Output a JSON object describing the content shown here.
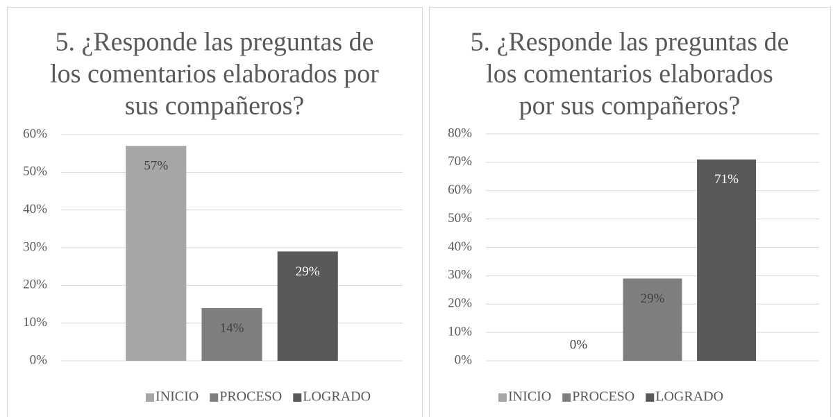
{
  "chart_data": [
    {
      "type": "bar",
      "title": [
        "5. ¿Responde las preguntas de",
        "los comentarios elaborados por",
        "sus compañeros?"
      ],
      "categories": [
        null
      ],
      "series": [
        {
          "name": "INICIO",
          "color": "#a6a6a6",
          "values": [
            57
          ],
          "value_labels": [
            "57%"
          ]
        },
        {
          "name": "PROCESO",
          "color": "#7f7f7f",
          "values": [
            14
          ],
          "value_labels": [
            "14%"
          ]
        },
        {
          "name": "LOGRADO",
          "color": "#595959",
          "values": [
            29
          ],
          "value_labels": [
            "29%"
          ]
        }
      ],
      "ylim": [
        0,
        60
      ],
      "yticks": [
        {
          "value": 0,
          "label": "0%"
        },
        {
          "value": 10,
          "label": "10%"
        },
        {
          "value": 20,
          "label": "20%"
        },
        {
          "value": 30,
          "label": "30%"
        },
        {
          "value": 40,
          "label": "40%"
        },
        {
          "value": 50,
          "label": "50%"
        },
        {
          "value": 60,
          "label": "60%"
        }
      ],
      "grid": true,
      "legend": "bottom"
    },
    {
      "type": "bar",
      "title": [
        "5. ¿Responde las preguntas de",
        "los comentarios elaborados",
        "por sus compañeros?"
      ],
      "categories": [
        null
      ],
      "series": [
        {
          "name": "INICIO",
          "color": "#a6a6a6",
          "values": [
            0
          ],
          "value_labels": [
            "0%"
          ]
        },
        {
          "name": "PROCESO",
          "color": "#7f7f7f",
          "values": [
            29
          ],
          "value_labels": [
            "29%"
          ]
        },
        {
          "name": "LOGRADO",
          "color": "#595959",
          "values": [
            71
          ],
          "value_labels": [
            "71%"
          ]
        }
      ],
      "ylim": [
        0,
        80
      ],
      "yticks": [
        {
          "value": 0,
          "label": "0%"
        },
        {
          "value": 10,
          "label": "10%"
        },
        {
          "value": 20,
          "label": "20%"
        },
        {
          "value": 30,
          "label": "30%"
        },
        {
          "value": 40,
          "label": "40%"
        },
        {
          "value": 50,
          "label": "50%"
        },
        {
          "value": 60,
          "label": "60%"
        },
        {
          "value": 70,
          "label": "70%"
        },
        {
          "value": 80,
          "label": "80%"
        }
      ],
      "grid": true,
      "legend": "bottom"
    }
  ]
}
